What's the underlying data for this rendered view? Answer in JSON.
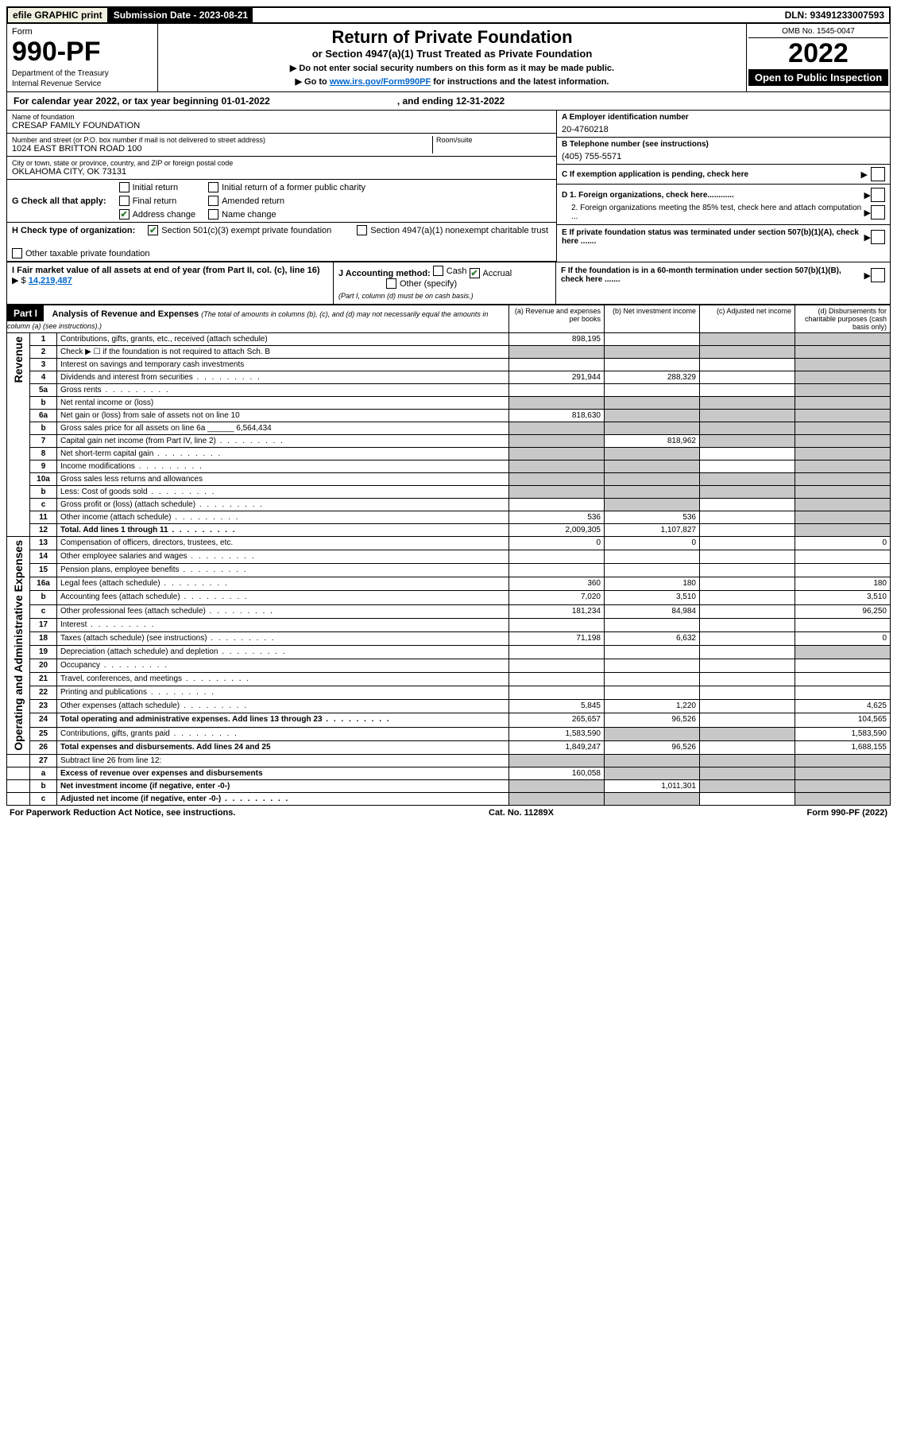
{
  "topbar": {
    "efile": "efile GRAPHIC print",
    "subdate_label": "Submission Date - 2023-08-21",
    "dln": "DLN: 93491233007593"
  },
  "header": {
    "form_word": "Form",
    "form_num": "990-PF",
    "dept": "Department of the Treasury",
    "irs": "Internal Revenue Service",
    "title": "Return of Private Foundation",
    "subtitle": "or Section 4947(a)(1) Trust Treated as Private Foundation",
    "note1": "▶ Do not enter social security numbers on this form as it may be made public.",
    "note2_pre": "▶ Go to ",
    "note2_link": "www.irs.gov/Form990PF",
    "note2_post": " for instructions and the latest information.",
    "omb": "OMB No. 1545-0047",
    "year": "2022",
    "inspect": "Open to Public Inspection"
  },
  "cal": {
    "text1": "For calendar year 2022, or tax year beginning 01-01-2022",
    "text2": ", and ending 12-31-2022"
  },
  "id": {
    "name_lbl": "Name of foundation",
    "name": "CRESAP FAMILY FOUNDATION",
    "addr_lbl": "Number and street (or P.O. box number if mail is not delivered to street address)",
    "addr": "1024 EAST BRITTON ROAD 100",
    "room_lbl": "Room/suite",
    "city_lbl": "City or town, state or province, country, and ZIP or foreign postal code",
    "city": "OKLAHOMA CITY, OK  73131",
    "a_lbl": "A Employer identification number",
    "a_val": "20-4760218",
    "b_lbl": "B Telephone number (see instructions)",
    "b_val": "(405) 755-5571",
    "c_lbl": "C If exemption application is pending, check here"
  },
  "g": {
    "label": "G Check all that apply:",
    "initial": "Initial return",
    "final": "Final return",
    "addrchg": "Address change",
    "initial_former": "Initial return of a former public charity",
    "amended": "Amended return",
    "namechg": "Name change"
  },
  "h": {
    "label": "H Check type of organization:",
    "s501": "Section 501(c)(3) exempt private foundation",
    "s4947": "Section 4947(a)(1) nonexempt charitable trust",
    "other_tax": "Other taxable private foundation"
  },
  "i": {
    "label": "I Fair market value of all assets at end of year (from Part II, col. (c), line 16)",
    "value": "14,219,487",
    "prefix": "▶ $"
  },
  "j": {
    "label": "J Accounting method:",
    "cash": "Cash",
    "accrual": "Accrual",
    "other": "Other (specify)",
    "note": "(Part I, column (d) must be on cash basis.)"
  },
  "d_section": {
    "d1": "D 1. Foreign organizations, check here............",
    "d2": "2. Foreign organizations meeting the 85% test, check here and attach computation ...",
    "e": "E  If private foundation status was terminated under section 507(b)(1)(A), check here .......",
    "f": "F  If the foundation is in a 60-month termination under section 507(b)(1)(B), check here ......."
  },
  "part1": {
    "hdr": "Part I",
    "title": "Analysis of Revenue and Expenses",
    "title_note": "(The total of amounts in columns (b), (c), and (d) may not necessarily equal the amounts in column (a) (see instructions).)",
    "col_a": "(a)  Revenue and expenses per books",
    "col_b": "(b)  Net investment income",
    "col_c": "(c)  Adjusted net income",
    "col_d": "(d)  Disbursements for charitable purposes (cash basis only)"
  },
  "side_labels": {
    "revenue": "Revenue",
    "expenses": "Operating and Administrative Expenses"
  },
  "rows": [
    {
      "n": "1",
      "d": "Contributions, gifts, grants, etc., received (attach schedule)",
      "a": "898,195",
      "b": "",
      "c": "",
      "dd": "",
      "gc": "grey",
      "gd": "grey"
    },
    {
      "n": "2",
      "d": "Check ▶ ☐ if the foundation is not required to attach Sch. B",
      "a": "",
      "b": "",
      "c": "",
      "dd": "",
      "ga": "grey",
      "gb": "grey",
      "gc": "grey",
      "gd": "grey"
    },
    {
      "n": "3",
      "d": "Interest on savings and temporary cash investments",
      "a": "",
      "b": "",
      "c": "",
      "dd": "",
      "gd": "grey"
    },
    {
      "n": "4",
      "d": "Dividends and interest from securities",
      "a": "291,944",
      "b": "288,329",
      "c": "",
      "dd": "",
      "gd": "grey",
      "dot": true
    },
    {
      "n": "5a",
      "d": "Gross rents",
      "a": "",
      "b": "",
      "c": "",
      "dd": "",
      "gd": "grey",
      "dot": true
    },
    {
      "n": "b",
      "d": "Net rental income or (loss)",
      "a": "",
      "b": "",
      "c": "",
      "dd": "",
      "ga": "grey",
      "gb": "grey",
      "gc": "grey",
      "gd": "grey"
    },
    {
      "n": "6a",
      "d": "Net gain or (loss) from sale of assets not on line 10",
      "a": "818,630",
      "b": "",
      "c": "",
      "dd": "",
      "gb": "grey",
      "gc": "grey",
      "gd": "grey"
    },
    {
      "n": "b",
      "d": "Gross sales price for all assets on line 6a ______ 6,564,434",
      "a": "",
      "b": "",
      "c": "",
      "dd": "",
      "ga": "grey",
      "gb": "grey",
      "gc": "grey",
      "gd": "grey"
    },
    {
      "n": "7",
      "d": "Capital gain net income (from Part IV, line 2)",
      "a": "",
      "b": "818,962",
      "c": "",
      "dd": "",
      "ga": "grey",
      "gc": "grey",
      "gd": "grey",
      "dot": true
    },
    {
      "n": "8",
      "d": "Net short-term capital gain",
      "a": "",
      "b": "",
      "c": "",
      "dd": "",
      "ga": "grey",
      "gb": "grey",
      "gd": "grey",
      "dot": true
    },
    {
      "n": "9",
      "d": "Income modifications",
      "a": "",
      "b": "",
      "c": "",
      "dd": "",
      "ga": "grey",
      "gb": "grey",
      "gd": "grey",
      "dot": true
    },
    {
      "n": "10a",
      "d": "Gross sales less returns and allowances",
      "a": "",
      "b": "",
      "c": "",
      "dd": "",
      "ga": "grey",
      "gb": "grey",
      "gc": "grey",
      "gd": "grey"
    },
    {
      "n": "b",
      "d": "Less: Cost of goods sold",
      "a": "",
      "b": "",
      "c": "",
      "dd": "",
      "ga": "grey",
      "gb": "grey",
      "gc": "grey",
      "gd": "grey",
      "dot": true
    },
    {
      "n": "c",
      "d": "Gross profit or (loss) (attach schedule)",
      "a": "",
      "b": "",
      "c": "",
      "dd": "",
      "gb": "grey",
      "gd": "grey",
      "dot": true
    },
    {
      "n": "11",
      "d": "Other income (attach schedule)",
      "a": "536",
      "b": "536",
      "c": "",
      "dd": "",
      "gd": "grey",
      "dot": true
    },
    {
      "n": "12",
      "d": "Total. Add lines 1 through 11",
      "a": "2,009,305",
      "b": "1,107,827",
      "c": "",
      "dd": "",
      "gd": "grey",
      "bold": true,
      "dot": true
    }
  ],
  "exp_rows": [
    {
      "n": "13",
      "d": "Compensation of officers, directors, trustees, etc.",
      "a": "0",
      "b": "0",
      "c": "",
      "dd": "0"
    },
    {
      "n": "14",
      "d": "Other employee salaries and wages",
      "a": "",
      "b": "",
      "c": "",
      "dd": "",
      "dot": true
    },
    {
      "n": "15",
      "d": "Pension plans, employee benefits",
      "a": "",
      "b": "",
      "c": "",
      "dd": "",
      "dot": true
    },
    {
      "n": "16a",
      "d": "Legal fees (attach schedule)",
      "a": "360",
      "b": "180",
      "c": "",
      "dd": "180",
      "dot": true
    },
    {
      "n": "b",
      "d": "Accounting fees (attach schedule)",
      "a": "7,020",
      "b": "3,510",
      "c": "",
      "dd": "3,510",
      "dot": true
    },
    {
      "n": "c",
      "d": "Other professional fees (attach schedule)",
      "a": "181,234",
      "b": "84,984",
      "c": "",
      "dd": "96,250",
      "dot": true
    },
    {
      "n": "17",
      "d": "Interest",
      "a": "",
      "b": "",
      "c": "",
      "dd": "",
      "dot": true
    },
    {
      "n": "18",
      "d": "Taxes (attach schedule) (see instructions)",
      "a": "71,198",
      "b": "6,632",
      "c": "",
      "dd": "0",
      "dot": true
    },
    {
      "n": "19",
      "d": "Depreciation (attach schedule) and depletion",
      "a": "",
      "b": "",
      "c": "",
      "dd": "",
      "gd": "grey",
      "dot": true
    },
    {
      "n": "20",
      "d": "Occupancy",
      "a": "",
      "b": "",
      "c": "",
      "dd": "",
      "dot": true
    },
    {
      "n": "21",
      "d": "Travel, conferences, and meetings",
      "a": "",
      "b": "",
      "c": "",
      "dd": "",
      "dot": true
    },
    {
      "n": "22",
      "d": "Printing and publications",
      "a": "",
      "b": "",
      "c": "",
      "dd": "",
      "dot": true
    },
    {
      "n": "23",
      "d": "Other expenses (attach schedule)",
      "a": "5,845",
      "b": "1,220",
      "c": "",
      "dd": "4,625",
      "dot": true
    },
    {
      "n": "24",
      "d": "Total operating and administrative expenses. Add lines 13 through 23",
      "a": "265,657",
      "b": "96,526",
      "c": "",
      "dd": "104,565",
      "bold": true,
      "dot": true
    },
    {
      "n": "25",
      "d": "Contributions, gifts, grants paid",
      "a": "1,583,590",
      "b": "",
      "c": "",
      "dd": "1,583,590",
      "gb": "grey",
      "gc": "grey",
      "dot": true
    },
    {
      "n": "26",
      "d": "Total expenses and disbursements. Add lines 24 and 25",
      "a": "1,849,247",
      "b": "96,526",
      "c": "",
      "dd": "1,688,155",
      "bold": true
    }
  ],
  "final_rows": [
    {
      "n": "27",
      "d": "Subtract line 26 from line 12:",
      "a": "",
      "b": "",
      "c": "",
      "dd": "",
      "ga": "grey",
      "gb": "grey",
      "gc": "grey",
      "gd": "grey"
    },
    {
      "n": "a",
      "d": "Excess of revenue over expenses and disbursements",
      "a": "160,058",
      "b": "",
      "c": "",
      "dd": "",
      "gb": "grey",
      "gc": "grey",
      "gd": "grey",
      "bold": true
    },
    {
      "n": "b",
      "d": "Net investment income (if negative, enter -0-)",
      "a": "",
      "b": "1,011,301",
      "c": "",
      "dd": "",
      "ga": "grey",
      "gc": "grey",
      "gd": "grey",
      "bold": true
    },
    {
      "n": "c",
      "d": "Adjusted net income (if negative, enter -0-)",
      "a": "",
      "b": "",
      "c": "",
      "dd": "",
      "ga": "grey",
      "gb": "grey",
      "gd": "grey",
      "bold": true,
      "dot": true
    }
  ],
  "footer": {
    "left": "For Paperwork Reduction Act Notice, see instructions.",
    "mid": "Cat. No. 11289X",
    "right": "Form 990-PF (2022)"
  }
}
